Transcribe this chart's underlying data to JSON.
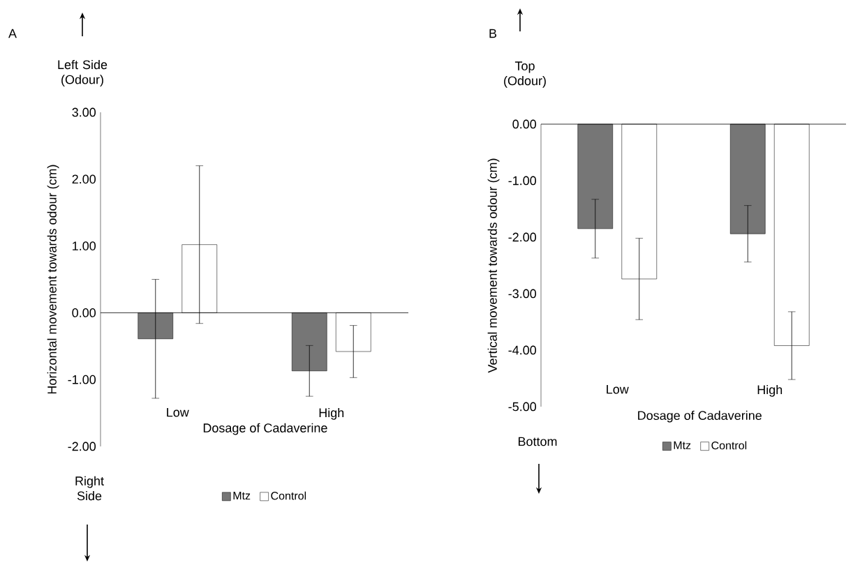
{
  "chart_data": [
    {
      "type": "bar",
      "title": "A",
      "xlabel": "Dosage of Cadaverine",
      "ylabel": "Horizontal  movement towards odour (cm)",
      "categories": [
        "Low",
        "High"
      ],
      "series": [
        {
          "name": "Mtz",
          "color": "#767676",
          "values": [
            -0.39,
            -0.87
          ],
          "errors": [
            0.89,
            0.38
          ]
        },
        {
          "name": "Control",
          "color": "#ffffff",
          "values": [
            1.02,
            -0.58
          ],
          "errors": [
            1.18,
            0.39
          ]
        }
      ],
      "ylim": [
        -2,
        3
      ],
      "yticks": [
        {
          "value": -2,
          "label": "-2.00"
        },
        {
          "value": -1,
          "label": "-1.00"
        },
        {
          "value": 0,
          "label": "0.00"
        },
        {
          "value": 1,
          "label": "1.00"
        },
        {
          "value": 2,
          "label": "2.00"
        },
        {
          "value": 3,
          "label": "3.00"
        }
      ],
      "legend": "bottom",
      "annotations": [
        "Left Side (Odour)",
        "Right Side"
      ]
    },
    {
      "type": "bar",
      "title": "B",
      "xlabel": "Dosage of Cadaverine",
      "ylabel": "Vertical movement towards odour (cm)",
      "categories": [
        "Low",
        "High"
      ],
      "series": [
        {
          "name": "Mtz",
          "color": "#767676",
          "values": [
            -1.85,
            -1.94
          ],
          "errors": [
            0.52,
            0.5
          ]
        },
        {
          "name": "Control",
          "color": "#ffffff",
          "values": [
            -2.74,
            -3.92
          ],
          "errors": [
            0.72,
            0.6
          ]
        }
      ],
      "ylim": [
        -5,
        0
      ],
      "yticks": [
        {
          "value": -5,
          "label": "-5.00"
        },
        {
          "value": -4,
          "label": "-4.00"
        },
        {
          "value": -3,
          "label": "-3.00"
        },
        {
          "value": -2,
          "label": "-2.00"
        },
        {
          "value": -1,
          "label": "-1.00"
        },
        {
          "value": 0,
          "label": "0.00"
        }
      ],
      "legend": "bottom",
      "annotations": [
        "Top (Odour)",
        "Bottom"
      ]
    }
  ]
}
